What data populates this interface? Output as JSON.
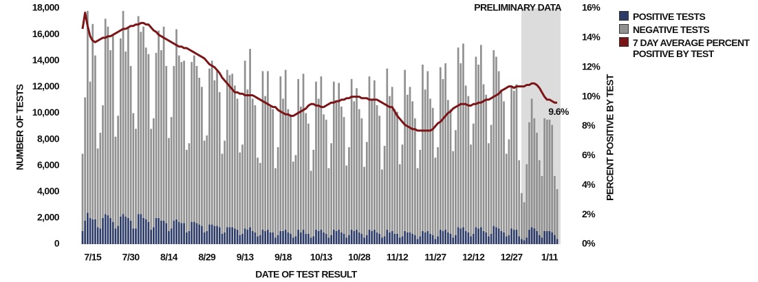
{
  "chart_data": {
    "type": "bar",
    "stacked": true,
    "x_title": "DATE OF TEST RESULT",
    "y_title": "NUMBER OF TESTS",
    "y2_title": "PERCENT POSITIVE BY TEST",
    "annotations": [
      "PRELIMINARY DATA",
      "9.6%"
    ],
    "categories": [
      null,
      null,
      null,
      null,
      "7/15",
      null,
      null,
      null,
      null,
      null,
      null,
      null,
      null,
      null,
      null,
      null,
      null,
      null,
      null,
      "7/30",
      null,
      null,
      null,
      null,
      null,
      null,
      null,
      null,
      null,
      null,
      null,
      null,
      null,
      null,
      "8/14",
      null,
      null,
      null,
      null,
      null,
      null,
      null,
      null,
      null,
      null,
      null,
      null,
      null,
      null,
      "8/29",
      null,
      null,
      null,
      null,
      null,
      null,
      null,
      null,
      null,
      null,
      null,
      null,
      null,
      null,
      "9/13",
      null,
      null,
      null,
      null,
      null,
      null,
      null,
      null,
      null,
      null,
      null,
      null,
      null,
      null,
      "9/18",
      null,
      null,
      null,
      null,
      null,
      null,
      null,
      null,
      null,
      null,
      null,
      null,
      null,
      null,
      "10/13",
      null,
      null,
      null,
      null,
      null,
      null,
      null,
      null,
      null,
      null,
      null,
      null,
      null,
      null,
      "10/28",
      null,
      null,
      null,
      null,
      null,
      null,
      null,
      null,
      null,
      null,
      null,
      null,
      null,
      null,
      "11/12",
      null,
      null,
      null,
      null,
      null,
      null,
      null,
      null,
      null,
      null,
      null,
      null,
      null,
      null,
      "11/27",
      null,
      null,
      null,
      null,
      null,
      null,
      null,
      null,
      null,
      null,
      null,
      null,
      null,
      null,
      "12/12",
      null,
      null,
      null,
      null,
      null,
      null,
      null,
      null,
      null,
      null,
      null,
      null,
      null,
      null,
      "12/27",
      null,
      null,
      null,
      null,
      null,
      null,
      null,
      null,
      null,
      null,
      null,
      null,
      null,
      null,
      "1/11",
      null,
      null,
      null
    ],
    "series": [
      {
        "name": "POSITIVE TESTS",
        "color": "#2b3a67",
        "values": [
          1000,
          1800,
          2400,
          2000,
          1900,
          1900,
          1300,
          1200,
          2000,
          2300,
          2200,
          2000,
          1700,
          1200,
          1400,
          2100,
          2300,
          2100,
          2000,
          1800,
          1200,
          1200,
          2300,
          2300,
          2000,
          1900,
          1700,
          1100,
          1300,
          2000,
          2000,
          1800,
          1800,
          1600,
          1000,
          1200,
          1800,
          1900,
          1700,
          1600,
          1600,
          900,
          1000,
          1700,
          1700,
          1600,
          1500,
          1400,
          900,
          1000,
          1500,
          1500,
          1400,
          1400,
          1300,
          800,
          900,
          1300,
          1300,
          1300,
          1200,
          1100,
          700,
          800,
          1200,
          1100,
          1300,
          1000,
          900,
          600,
          700,
          1100,
          1000,
          1100,
          900,
          900,
          500,
          700,
          1000,
          1000,
          1100,
          900,
          800,
          500,
          600,
          1100,
          900,
          1100,
          800,
          800,
          500,
          600,
          1100,
          1000,
          1100,
          900,
          800,
          500,
          700,
          1100,
          1000,
          1100,
          900,
          800,
          500,
          700,
          1100,
          1000,
          1100,
          900,
          800,
          500,
          700,
          1100,
          1000,
          1100,
          900,
          800,
          500,
          600,
          1100,
          900,
          1000,
          800,
          800,
          500,
          600,
          1000,
          900,
          900,
          800,
          700,
          400,
          600,
          1000,
          900,
          1000,
          800,
          700,
          400,
          600,
          1100,
          1000,
          1100,
          900,
          800,
          500,
          700,
          1300,
          1200,
          1300,
          1000,
          900,
          600,
          800,
          1300,
          1200,
          1300,
          1000,
          900,
          600,
          800,
          1400,
          1300,
          1200,
          1000,
          900,
          600,
          700,
          1200,
          1100,
          1100,
          600,
          400,
          300,
          500,
          1100,
          1300,
          1200,
          1000,
          700,
          500,
          1000,
          1000,
          1000,
          900,
          700,
          400
        ]
      },
      {
        "name": "NEGATIVE TESTS",
        "color": "#909090",
        "values": [
          5900,
          9400,
          15400,
          10400,
          14900,
          12500,
          6000,
          7300,
          8600,
          14900,
          14400,
          12800,
          14300,
          7000,
          8400,
          13600,
          15500,
          12600,
          14500,
          11800,
          8800,
          7600,
          15100,
          13900,
          14600,
          13100,
          12800,
          7700,
          8300,
          12600,
          14300,
          13000,
          14800,
          12000,
          7100,
          8500,
          11800,
          14500,
          12700,
          12300,
          12400,
          6300,
          6700,
          12200,
          12700,
          12000,
          11200,
          10600,
          7000,
          7300,
          11900,
          12500,
          11100,
          11800,
          10300,
          6100,
          7000,
          12000,
          11600,
          11700,
          10900,
          10000,
          6300,
          6800,
          12800,
          10700,
          13600,
          10100,
          9700,
          6000,
          5500,
          12100,
          10300,
          12100,
          9600,
          9400,
          5300,
          6700,
          11800,
          10100,
          12200,
          9400,
          9100,
          5800,
          6200,
          11500,
          9600,
          11900,
          9200,
          8400,
          5100,
          6600,
          11300,
          10100,
          11700,
          9000,
          8700,
          5300,
          7000,
          11300,
          9900,
          11200,
          9600,
          8900,
          5500,
          6700,
          11500,
          9900,
          10800,
          9400,
          8800,
          5400,
          7100,
          11700,
          10000,
          11400,
          9700,
          9000,
          5200,
          6900,
          12300,
          10400,
          11000,
          9500,
          9300,
          5600,
          7000,
          12300,
          10500,
          11100,
          10100,
          8900,
          5400,
          6600,
          12700,
          10900,
          12200,
          10300,
          9700,
          6200,
          6800,
          12400,
          11600,
          12700,
          10100,
          9500,
          6600,
          8000,
          13700,
          12600,
          14000,
          11100,
          10400,
          7000,
          8400,
          13000,
          12500,
          13900,
          11200,
          10500,
          7100,
          8300,
          13400,
          13000,
          12000,
          10800,
          10000,
          6300,
          7300,
          10800,
          10600,
          11100,
          5800,
          3500,
          2900,
          5600,
          8200,
          9800,
          8400,
          7500,
          5700,
          4700,
          8600,
          8500,
          8500,
          8200,
          4500,
          3800
        ]
      },
      {
        "name": "7 DAY AVERAGE PERCENT POSITIVE BY TEST",
        "color": "#7b1416",
        "type": "line",
        "axis": "y2",
        "values": [
          14.6,
          15.7,
          14.8,
          14.1,
          13.8,
          13.7,
          13.8,
          13.9,
          14.0,
          14.0,
          14.1,
          14.1,
          14.2,
          14.3,
          14.4,
          14.5,
          14.6,
          14.6,
          14.7,
          14.8,
          14.8,
          14.9,
          14.9,
          15.0,
          15.0,
          14.9,
          14.9,
          14.7,
          14.5,
          14.4,
          14.2,
          14.1,
          14.0,
          13.9,
          13.8,
          13.7,
          13.6,
          13.5,
          13.4,
          13.4,
          13.3,
          13.3,
          13.2,
          13.1,
          13.0,
          12.9,
          12.8,
          12.7,
          12.6,
          12.4,
          12.2,
          12.1,
          12.0,
          11.8,
          11.6,
          11.3,
          11.1,
          10.9,
          10.7,
          10.5,
          10.3,
          10.3,
          10.2,
          10.2,
          10.1,
          10.1,
          10.1,
          10.1,
          10.0,
          9.9,
          9.8,
          9.7,
          9.6,
          9.5,
          9.4,
          9.3,
          9.3,
          9.1,
          9.0,
          8.9,
          8.8,
          8.8,
          8.7,
          8.7,
          8.8,
          8.9,
          9.0,
          9.1,
          9.2,
          9.4,
          9.5,
          9.5,
          9.4,
          9.4,
          9.3,
          9.3,
          9.4,
          9.5,
          9.6,
          9.6,
          9.7,
          9.7,
          9.8,
          9.8,
          9.9,
          9.9,
          10.0,
          10.0,
          10.0,
          10.0,
          9.9,
          9.9,
          9.9,
          9.8,
          9.8,
          9.8,
          9.8,
          9.7,
          9.6,
          9.5,
          9.4,
          9.3,
          9.3,
          9.0,
          8.7,
          8.5,
          8.3,
          8.1,
          8.0,
          7.9,
          7.8,
          7.8,
          7.7,
          7.7,
          7.7,
          7.7,
          7.7,
          7.7,
          7.8,
          8.0,
          8.2,
          8.3,
          8.5,
          8.7,
          8.9,
          9.0,
          9.2,
          9.3,
          9.4,
          9.5,
          9.5,
          9.5,
          9.4,
          9.4,
          9.5,
          9.5,
          9.6,
          9.6,
          9.7,
          9.8,
          9.8,
          9.9,
          10.0,
          10.1,
          10.2,
          10.4,
          10.5,
          10.6,
          10.7,
          10.7,
          10.6,
          10.7,
          10.7,
          10.7,
          10.7,
          10.8,
          10.8,
          10.9,
          10.9,
          10.8,
          10.6,
          10.3,
          10.0,
          9.8,
          9.8,
          9.7,
          9.6,
          9.6
        ]
      }
    ],
    "ylim": [
      0,
      18000
    ],
    "yticks": [
      0,
      {
        "value": 2000,
        "label": "2,000"
      },
      {
        "value": 4000,
        "label": "4,000"
      },
      {
        "value": 6000,
        "label": "6,000"
      },
      {
        "value": 8000,
        "label": "8,000"
      },
      {
        "value": 10000,
        "label": "10,000"
      },
      {
        "value": 12000,
        "label": "12,000"
      },
      {
        "value": 14000,
        "label": "14,000"
      },
      {
        "value": 16000,
        "label": "16,000"
      },
      {
        "value": 18000,
        "label": "18,000"
      }
    ],
    "y2lim": [
      0,
      16
    ],
    "y2ticks": [
      {
        "value": 0,
        "label": "0%"
      },
      {
        "value": 2,
        "label": "2%"
      },
      {
        "value": 4,
        "label": "4%"
      },
      {
        "value": 6,
        "label": "6%"
      },
      {
        "value": 8,
        "label": "8%"
      },
      {
        "value": 10,
        "label": "10%"
      },
      {
        "value": 12,
        "label": "12%"
      },
      {
        "value": 14,
        "label": "14%"
      },
      {
        "value": 16,
        "label": "16%"
      }
    ],
    "grid": false,
    "legend": "top-right"
  }
}
